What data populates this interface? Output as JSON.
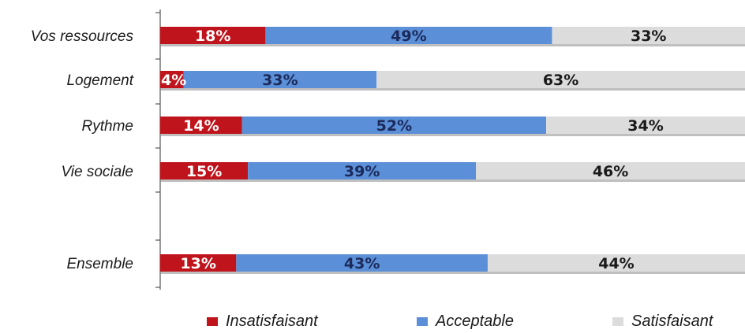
{
  "chart_data": {
    "type": "bar",
    "orientation": "horizontal",
    "stacked": true,
    "percent_stacked": true,
    "categories": [
      "Vos ressources",
      "Logement",
      "Rythme",
      "Vie sociale",
      "Ensemble"
    ],
    "series": [
      {
        "name": "Insatisfaisant",
        "values": [
          18,
          4,
          14,
          15,
          13
        ],
        "labels": [
          "18%",
          "4%",
          "14%",
          "15%",
          "13%"
        ],
        "color": "#c0141c",
        "label_color": "#ffffff"
      },
      {
        "name": "Acceptable",
        "values": [
          49,
          33,
          52,
          39,
          43
        ],
        "labels": [
          "49%",
          "33%",
          "52%",
          "39%",
          "43%"
        ],
        "color": "#5b8fd8",
        "label_color": "#1c2a5a"
      },
      {
        "name": "Satisfaisant",
        "values": [
          33,
          63,
          34,
          46,
          44
        ],
        "labels": [
          "33%",
          "63%",
          "34%",
          "46%",
          "44%"
        ],
        "color": "#dcdcdc",
        "label_color": "#1a1a1a"
      }
    ],
    "xlim": [
      0,
      100
    ],
    "grid": false,
    "legend_position": "bottom"
  }
}
